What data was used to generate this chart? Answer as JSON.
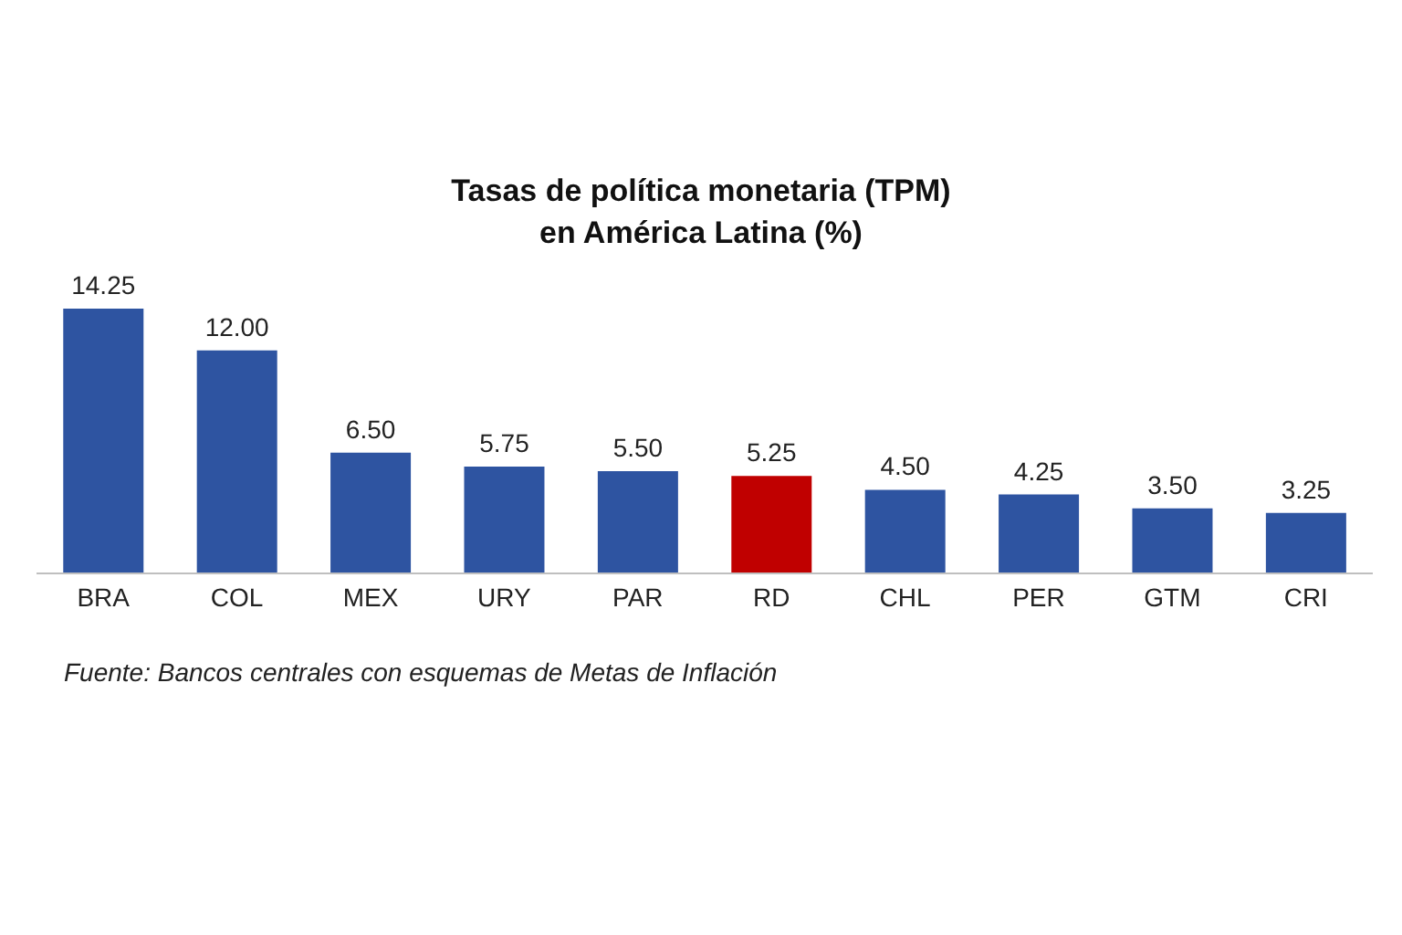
{
  "chart_data": {
    "type": "bar",
    "title": "Tasas de política monetaria (TPM)\nen América Latina (%)",
    "categories": [
      "BRA",
      "COL",
      "MEX",
      "URY",
      "PAR",
      "RD",
      "CHL",
      "PER",
      "GTM",
      "CRI"
    ],
    "values": [
      14.25,
      12.0,
      6.5,
      5.75,
      5.5,
      5.25,
      4.5,
      4.25,
      3.5,
      3.25
    ],
    "colors": [
      "#2e54a1",
      "#2e54a1",
      "#2e54a1",
      "#2e54a1",
      "#2e54a1",
      "#c00000",
      "#2e54a1",
      "#2e54a1",
      "#2e54a1",
      "#2e54a1"
    ],
    "value_labels": [
      "14.25",
      "12.00",
      "6.50",
      "5.75",
      "5.50",
      "5.25",
      "4.50",
      "4.25",
      "3.50",
      "3.25"
    ],
    "annotations": [
      "Fuente: Bancos centrales con esquemas de Metas de Inflación"
    ],
    "grid": false,
    "legend": false
  }
}
